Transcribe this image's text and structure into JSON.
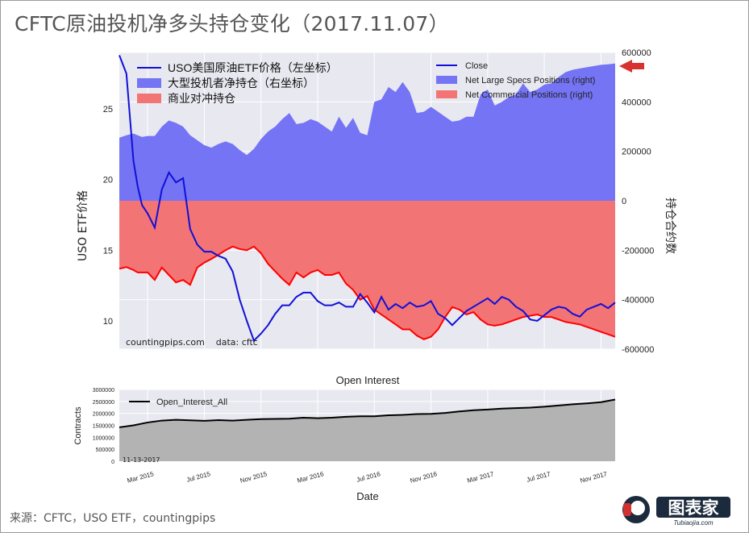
{
  "page": {
    "title": "CFTC原油投机净多头持仓变化（2017.11.07）",
    "source": "来源：CFTC，USO ETF，countingpips",
    "watermark": "countingpips.com    data: cftc",
    "date_stamp": "11-13-2017",
    "logo_text": "图表家",
    "logo_sub": "Tubiaojia.com"
  },
  "colors": {
    "price_line": "#1010d8",
    "net_large_specs_fill": "#7474f5",
    "net_commercial_fill": "#f37474",
    "net_commercial_line": "#ff0000",
    "plot_bg": "#e8e8f0",
    "oi_fill": "#b3b3b3",
    "oi_line": "#000000",
    "arrow": "#d93030"
  },
  "chart_data": [
    {
      "type": "line",
      "title": "",
      "ylabel": "USO ETF价格",
      "y2label": "持仓合约数",
      "ylim": [
        8.0,
        29.0
      ],
      "y2lim": [
        -600000,
        600000
      ],
      "yticks": [
        10,
        15,
        20,
        25
      ],
      "y2ticks": [
        -600000,
        -400000,
        -200000,
        0,
        200000,
        400000,
        600000
      ],
      "y2tick_labels": [
        "-600000",
        "-400000",
        "-200000",
        "0",
        "200000",
        "400000",
        "600000"
      ],
      "legend_left": [
        {
          "label": "USO美国原油ETF价格（左坐标）",
          "type": "line"
        },
        {
          "label": "大型投机者净持仓（右坐标）",
          "type": "area-blue"
        },
        {
          "label": "商业对冲持仓",
          "type": "area-red"
        }
      ],
      "legend_right": [
        {
          "label": "Close",
          "type": "line"
        },
        {
          "label": "Net Large Specs Positions (right)",
          "type": "area-blue"
        },
        {
          "label": "Net Commercial Positions (right)",
          "type": "area-red"
        }
      ],
      "legend_placement": "top",
      "x_months_since_jan2015": [
        0.0,
        0.5,
        1.0,
        1.3,
        1.6,
        2.0,
        2.5,
        3.0,
        3.5,
        4.0,
        4.5,
        5.0,
        5.5,
        6.0,
        6.5,
        7.0,
        7.5,
        8.0,
        8.5,
        9.0,
        9.5,
        10.0,
        10.5,
        11.0,
        11.5,
        12.0,
        12.5,
        13.0,
        13.5,
        14.0,
        14.5,
        15.0,
        15.5,
        16.0,
        16.5,
        17.0,
        17.5,
        18.0,
        18.5,
        19.0,
        19.5,
        20.0,
        20.5,
        21.0,
        21.5,
        22.0,
        22.5,
        23.0,
        23.5,
        24.0,
        24.5,
        25.0,
        25.5,
        26.0,
        26.5,
        27.0,
        27.5,
        28.0,
        28.5,
        29.0,
        29.5,
        30.0,
        30.5,
        31.0,
        31.5,
        32.0,
        32.5,
        33.0,
        33.5,
        34.0,
        34.5,
        35.0
      ],
      "series": [
        {
          "name": "Close",
          "values": [
            28.8,
            27.5,
            21.3,
            19.5,
            18.2,
            17.6,
            16.6,
            19.3,
            20.5,
            19.8,
            20.1,
            16.5,
            15.4,
            14.9,
            14.9,
            14.6,
            14.4,
            13.5,
            11.5,
            10.0,
            8.6,
            9.1,
            9.7,
            10.5,
            11.1,
            11.1,
            11.7,
            12.0,
            12.0,
            11.4,
            11.1,
            11.1,
            11.3,
            11.0,
            11.0,
            11.9,
            11.3,
            10.6,
            11.7,
            10.8,
            11.2,
            10.9,
            11.3,
            11.0,
            11.1,
            11.4,
            10.5,
            10.2,
            9.7,
            10.2,
            10.7,
            11.0,
            11.3,
            11.6,
            11.2,
            11.7,
            11.5,
            11.0,
            10.7,
            10.1,
            10.0,
            10.4,
            10.8,
            11.0,
            10.9,
            10.5,
            10.3,
            10.8,
            11.0,
            11.2,
            10.9,
            11.3
          ]
        },
        {
          "name": "Net Large Specs Positions (right)",
          "values": [
            255000,
            265000,
            272000,
            265000,
            258000,
            262000,
            262000,
            300000,
            325000,
            315000,
            300000,
            265000,
            245000,
            225000,
            215000,
            230000,
            240000,
            230000,
            205000,
            185000,
            210000,
            250000,
            280000,
            300000,
            330000,
            355000,
            310000,
            315000,
            330000,
            320000,
            300000,
            280000,
            340000,
            295000,
            335000,
            275000,
            265000,
            400000,
            410000,
            460000,
            440000,
            480000,
            440000,
            355000,
            360000,
            380000,
            360000,
            340000,
            320000,
            325000,
            340000,
            340000,
            430000,
            450000,
            385000,
            400000,
            420000,
            430000,
            475000,
            440000,
            450000,
            470000,
            475000,
            500000,
            520000,
            530000,
            535000,
            540000,
            545000,
            550000,
            552000,
            555000
          ]
        },
        {
          "name": "Net Commercial Positions (right)",
          "values": [
            -275000,
            -268000,
            -280000,
            -290000,
            -290000,
            -290000,
            -320000,
            -270000,
            -300000,
            -330000,
            -320000,
            -340000,
            -270000,
            -250000,
            -235000,
            -218000,
            -200000,
            -185000,
            -195000,
            -200000,
            -185000,
            -212000,
            -255000,
            -285000,
            -315000,
            -340000,
            -290000,
            -310000,
            -290000,
            -280000,
            -300000,
            -300000,
            -290000,
            -335000,
            -360000,
            -400000,
            -385000,
            -440000,
            -460000,
            -480000,
            -500000,
            -520000,
            -520000,
            -545000,
            -560000,
            -550000,
            -520000,
            -470000,
            -430000,
            -440000,
            -460000,
            -450000,
            -480000,
            -500000,
            -505000,
            -500000,
            -490000,
            -480000,
            -470000,
            -465000,
            -460000,
            -470000,
            -470000,
            -480000,
            -490000,
            -495000,
            -500000,
            -510000,
            -520000,
            -530000,
            -540000,
            -550000
          ]
        }
      ]
    },
    {
      "type": "area",
      "title": "Open Interest",
      "xlabel": "Date",
      "ylabel": "Contracts",
      "ylim": [
        0,
        3000000
      ],
      "yticks": [
        0,
        500000,
        1000000,
        1500000,
        2000000,
        2500000,
        3000000
      ],
      "ytick_labels": [
        "0",
        "500000",
        "1000000",
        "1500000",
        "2000000",
        "2500000",
        "3000000"
      ],
      "legend": [
        "Open_Interest_All"
      ],
      "legend_placement": "top-left",
      "x_months_since_jan2015": [
        0.0,
        1.0,
        2.0,
        3.0,
        4.0,
        5.0,
        6.0,
        7.0,
        8.0,
        9.0,
        10.0,
        11.0,
        12.0,
        13.0,
        14.0,
        15.0,
        16.0,
        17.0,
        18.0,
        19.0,
        20.0,
        21.0,
        22.0,
        23.0,
        24.0,
        25.0,
        26.0,
        27.0,
        28.0,
        29.0,
        30.0,
        31.0,
        32.0,
        33.0,
        34.0,
        35.0
      ],
      "series": [
        {
          "name": "Open_Interest_All",
          "values": [
            1420000,
            1500000,
            1620000,
            1700000,
            1730000,
            1710000,
            1690000,
            1720000,
            1700000,
            1730000,
            1760000,
            1770000,
            1780000,
            1820000,
            1800000,
            1820000,
            1860000,
            1880000,
            1880000,
            1920000,
            1940000,
            1970000,
            1980000,
            2020000,
            2080000,
            2130000,
            2160000,
            2200000,
            2220000,
            2240000,
            2280000,
            2330000,
            2380000,
            2420000,
            2470000,
            2580000
          ]
        }
      ],
      "xtick_labels": [
        "Mar 2015",
        "Jul 2015",
        "Nov 2015",
        "Mar 2016",
        "Jul 2016",
        "Nov 2016",
        "Mar 2017",
        "Jul 2017",
        "Nov 2017"
      ],
      "xtick_months_since_jan2015": [
        2,
        6,
        10,
        14,
        18,
        22,
        26,
        30,
        34
      ]
    }
  ]
}
